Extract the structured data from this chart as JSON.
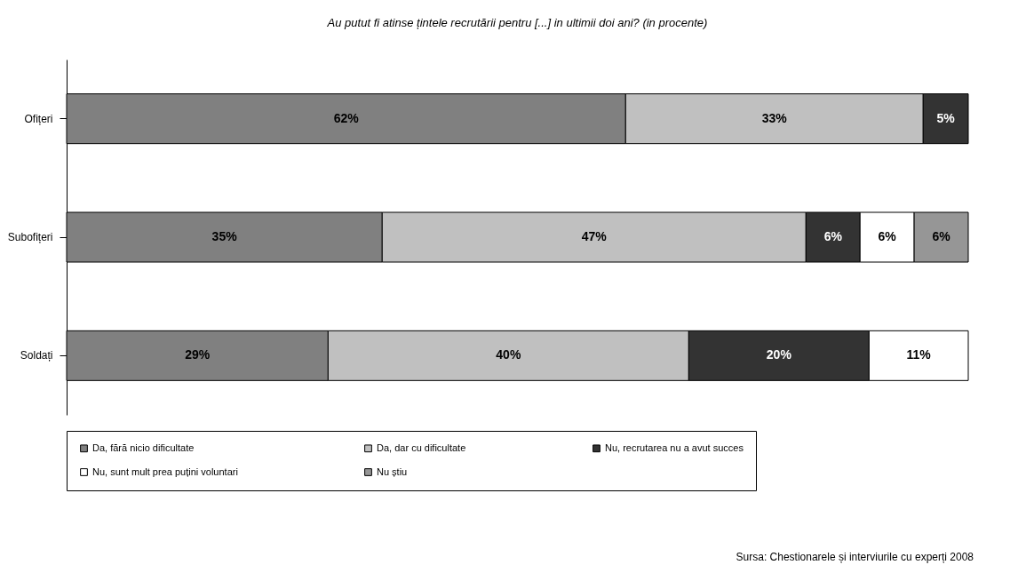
{
  "chart_data": {
    "type": "bar",
    "orientation": "horizontal",
    "stacked": true,
    "title": "Au putut fi atinse țintele recrutării pentru [...] in ultimii doi ani? (in procente)",
    "categories": [
      "Ofițeri",
      "Subofițeri",
      "Soldați"
    ],
    "series": [
      {
        "name": "Da, fără nicio dificultate",
        "color": "#808080",
        "values": [
          62,
          35,
          29
        ],
        "value_labels": [
          "62%",
          "35%",
          "29%"
        ]
      },
      {
        "name": "Da, dar cu dificultate",
        "color": "#c0c0c0",
        "values": [
          33,
          47,
          40
        ],
        "value_labels": [
          "33%",
          "47%",
          "40%"
        ]
      },
      {
        "name": "Nu, recrutarea nu a avut succes",
        "color": "#333333",
        "values": [
          5,
          6,
          20
        ],
        "value_labels": [
          "5%",
          "6%",
          "20%"
        ]
      },
      {
        "name": "Nu, sunt mult prea puțini voluntari",
        "color": "#ffffff",
        "values": [
          null,
          6,
          11
        ],
        "value_labels": [
          null,
          "6%",
          "11%"
        ]
      },
      {
        "name": "Nu știu",
        "color": "#969696",
        "values": [
          null,
          6,
          null
        ],
        "value_labels": [
          null,
          "6%",
          null
        ]
      }
    ],
    "legend": "bottom",
    "annotations": [
      "Sursa: Chestionarele și interviurile cu experți 2008"
    ]
  }
}
